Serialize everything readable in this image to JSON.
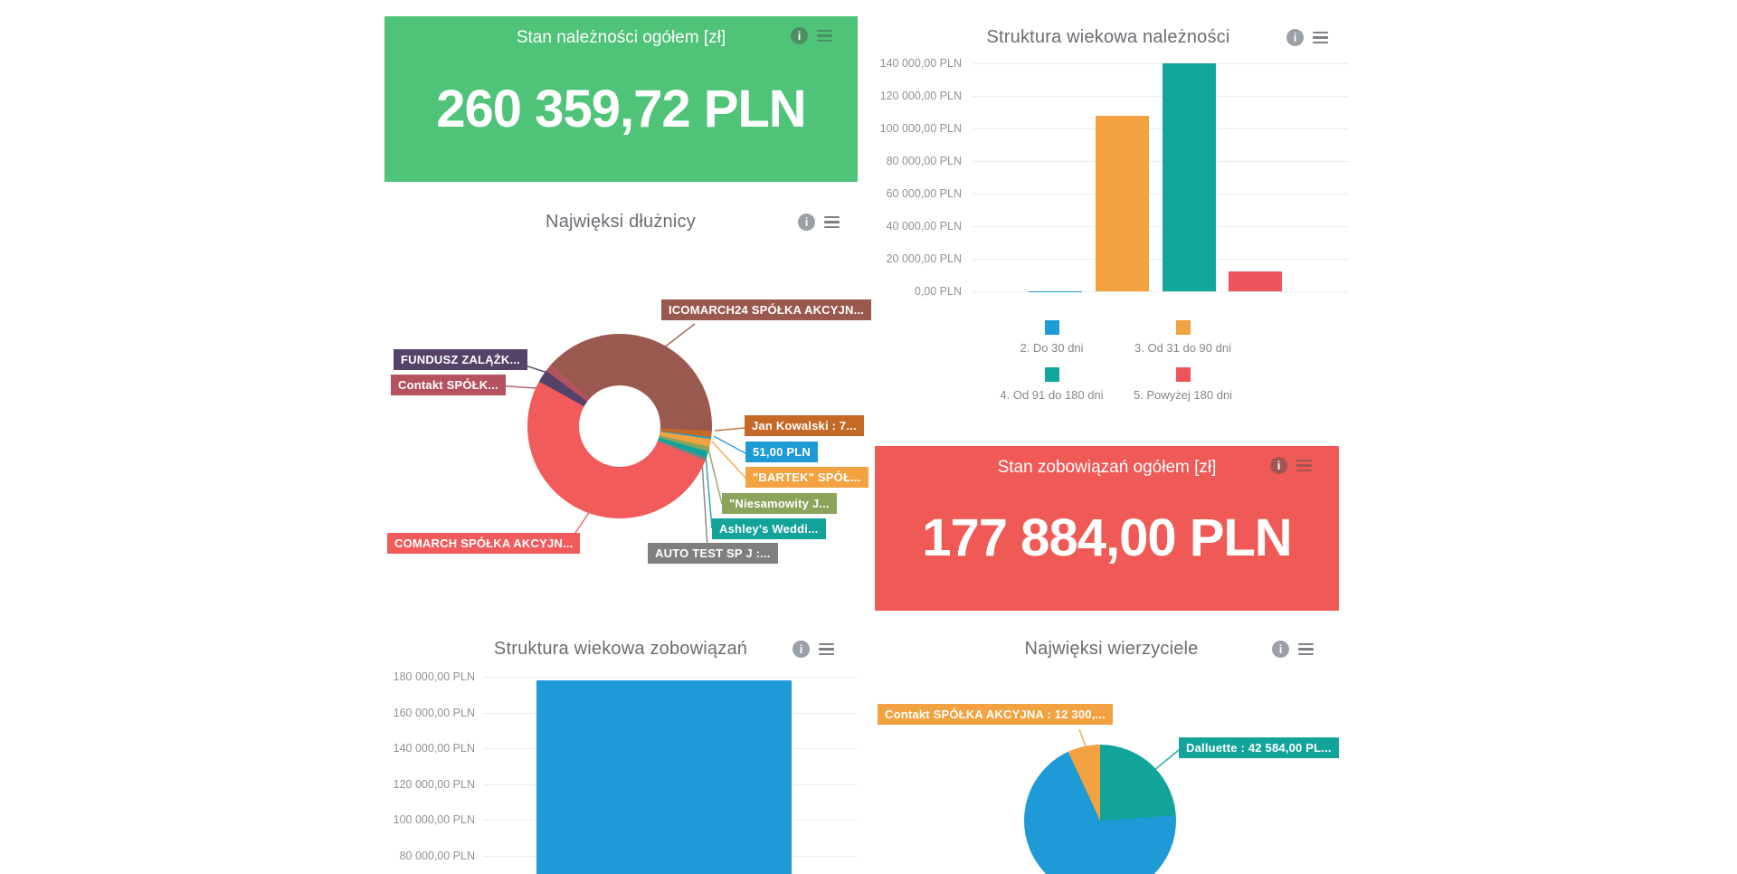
{
  "icons": {
    "info_glyph": "i",
    "menu": "hamburger-menu"
  },
  "kpis": {
    "receivables": {
      "title": "Stan należności ogółem [zł]",
      "value": "260 359,72 PLN",
      "bg_color": "#4FC377"
    },
    "payables": {
      "title": "Stan zobowiązań ogółem [zł]",
      "value": "177 884,00 PLN",
      "bg_color": "#EF5956"
    }
  },
  "chart_data": [
    {
      "id": "receivables_aging",
      "type": "bar",
      "title": "Struktura wiekowa należności",
      "categories": [
        "2. Do 30 dni",
        "3. Od 31 do 90 dni",
        "4. Od 91 do 180 dni",
        "5. Powyżej 180 dni"
      ],
      "values": [
        51,
        108008.72,
        140000,
        12300
      ],
      "colors": [
        "#1E9AD7",
        "#F2A240",
        "#12A79A",
        "#EF545C"
      ],
      "ylim": [
        0,
        140000
      ],
      "yticks": [
        "0,00 PLN",
        "20 000,00 PLN",
        "40 000,00 PLN",
        "60 000,00 PLN",
        "80 000,00 PLN",
        "100 000,00 PLN",
        "120 000,00 PLN",
        "140 000,00 PLN"
      ],
      "grid": true,
      "legend_position": "bottom",
      "note": "bar values estimated from gridlines; first bar ~51 PLN is invisible at this scale"
    },
    {
      "id": "debtors",
      "type": "pie",
      "subtype": "donut",
      "title": "Najwięksi dłużnicy",
      "start_angle_deg": 312,
      "segments": [
        {
          "label": "ICOMARCH24 SPÓŁKA AKCYJN...",
          "sweep_deg": 141,
          "color": "#9A594E"
        },
        {
          "label": "Jan Kowalski : 7...",
          "sweep_deg": 4,
          "color": "#C56A26"
        },
        {
          "label": "51,00 PLN",
          "sweep_deg": 1,
          "color": "#1E9AD7"
        },
        {
          "label": "\"BARTEK\" SPÓŁ...",
          "sweep_deg": 5,
          "color": "#F2A240"
        },
        {
          "label": "\"Niesamowity J...",
          "sweep_deg": 3,
          "color": "#8CA35C"
        },
        {
          "label": "Ashley's Weddi...",
          "sweep_deg": 4,
          "color": "#12A39A"
        },
        {
          "label": "AUTO TEST SP J :...",
          "sweep_deg": 2,
          "color": "#7F7F7F"
        },
        {
          "label": "COMARCH SPÓŁKA AKCYJN...",
          "sweep_deg": 187,
          "color": "#F25B5B"
        },
        {
          "label": "FUNDUSZ ZALĄŻK...",
          "sweep_deg": 8,
          "color": "#554269"
        },
        {
          "label": "Contakt SPÓŁK...",
          "sweep_deg": 5,
          "color": "#B4525F"
        }
      ],
      "note": "slice sweeps estimated from pixel angles; only truncated labels visible"
    },
    {
      "id": "payables_aging",
      "type": "bar",
      "title": "Struktura wiekowa zobowiązań",
      "categories": [
        ""
      ],
      "values": [
        177884
      ],
      "colors": [
        "#1E9AD7"
      ],
      "yticks_visible": [
        "80 000,00 PLN",
        "100 000,00 PLN",
        "120 000,00 PLN",
        "140 000,00 PLN",
        "160 000,00 PLN",
        "180 000,00 PLN"
      ],
      "ylim_visible": [
        80000,
        180000
      ],
      "grid": true,
      "note": "chart clipped at bottom edge of screenshot; single visible blue bar"
    },
    {
      "id": "creditors",
      "type": "pie",
      "title": "Najwięksi wierzyciele",
      "start_angle_deg": 0,
      "segments": [
        {
          "label": "Dalluette : 42 584,00 PL...",
          "value": 42584,
          "color": "#12A39A"
        },
        {
          "label": "",
          "value": 123000,
          "color": "#1E9AD7",
          "note": "unlabeled blue slice, value inferred from total"
        },
        {
          "label": "Contakt SPÓŁKA AKCYJNA : 12 300,...",
          "value": 12300,
          "color": "#F2A240"
        }
      ],
      "note": "pie clipped at bottom edge of screenshot"
    }
  ]
}
